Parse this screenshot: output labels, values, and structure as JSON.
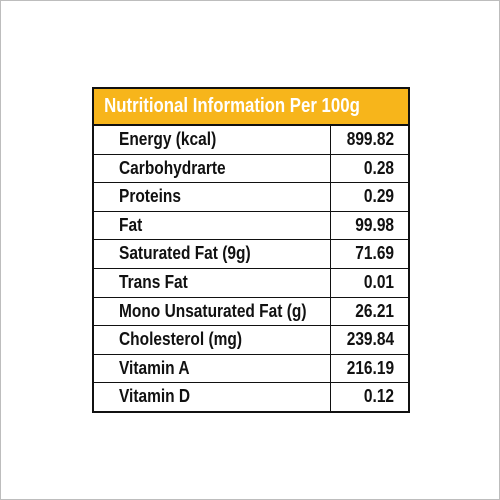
{
  "table": {
    "title": "Nutritional Information Per 100g",
    "rows": [
      [
        "Energy (kcal)",
        "899.82"
      ],
      [
        "Carbohydrarte",
        "0.28"
      ],
      [
        "Proteins",
        "0.29"
      ],
      [
        "Fat",
        "99.98"
      ],
      [
        "Saturated Fat (9g)",
        "71.69"
      ],
      [
        "Trans Fat",
        "0.01"
      ],
      [
        "Mono Unsaturated Fat (g)",
        "26.21"
      ],
      [
        "Cholesterol (mg)",
        "239.84"
      ],
      [
        "Vitamin A",
        "216.19"
      ],
      [
        "Vitamin D",
        "0.12"
      ]
    ]
  }
}
